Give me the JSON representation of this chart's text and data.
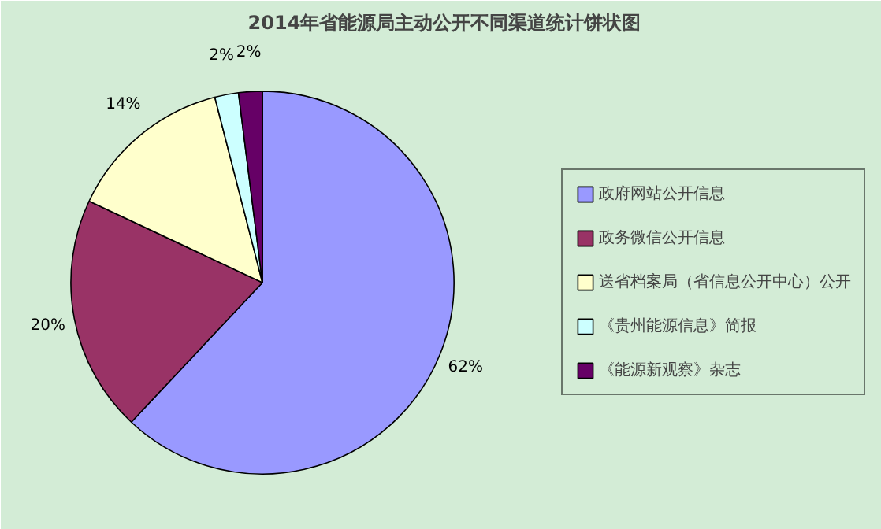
{
  "chart_data": {
    "type": "pie",
    "title": "2014年省能源局主动公开不同渠道统计饼状图",
    "categories": [
      "政府网站公开信息",
      "政务微信公开信息",
      "送省档案局（省信息公开中心）公开",
      "《贵州能源信息》简报",
      "《能源新观察》杂志"
    ],
    "values": [
      62,
      20,
      14,
      2,
      2
    ],
    "colors": [
      "#9999ff",
      "#993366",
      "#ffffcc",
      "#ccffff",
      "#660066"
    ],
    "value_labels": [
      "62%",
      "20%",
      "14%",
      "2%",
      "2%"
    ],
    "legend": "right"
  }
}
